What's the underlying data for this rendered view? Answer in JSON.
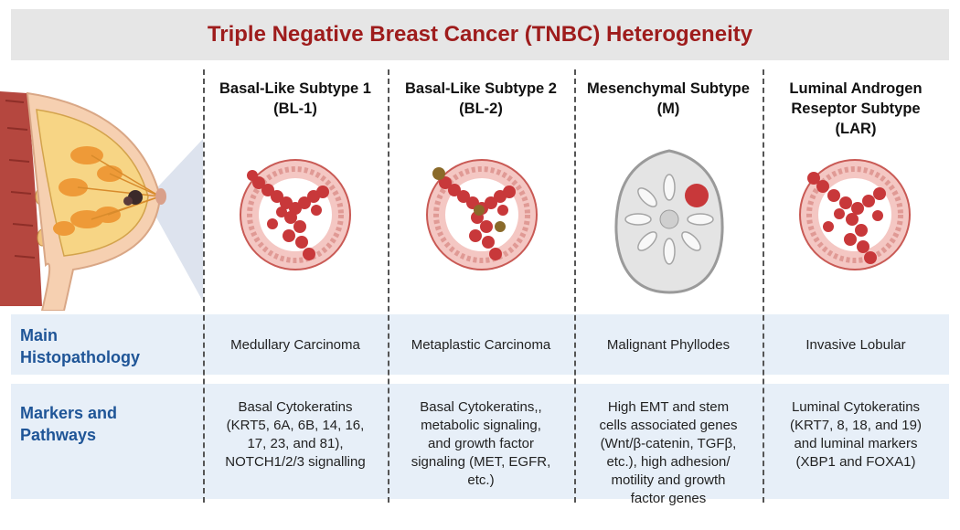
{
  "title": "Triple Negative Breast Cancer (TNBC) Heterogeneity",
  "subtypes": [
    {
      "name": "Basal-Like Subtype 1",
      "abbr": "(BL-1)"
    },
    {
      "name": "Basal-Like Subtype 2",
      "abbr": "(BL-2)"
    },
    {
      "name": "Mesenchymal Subtype",
      "abbr": "(M)"
    },
    {
      "name": "Luminal Androgen",
      "name2": "Reseptor Subtype",
      "abbr": "(LAR)"
    }
  ],
  "rows": {
    "histopathology": {
      "label_line1": "Main",
      "label_line2": "Histopathology",
      "values": [
        "Medullary Carcinoma",
        "Metaplastic Carcinoma",
        "Malignant Phyllodes",
        "Invasive Lobular"
      ]
    },
    "markers": {
      "label_line1": "Markers and",
      "label_line2": "Pathways",
      "values": [
        [
          "Basal Cytokeratins",
          "(KRT5, 6A, 6B, 14, 16,",
          "17, 23, and 81),",
          "NOTCH1/2/3 signalling"
        ],
        [
          "Basal Cytokeratins,,",
          "metabolic signaling,",
          "and growth factor",
          "signaling (MET, EGFR,",
          "etc.)"
        ],
        [
          "High EMT and stem",
          "cells associated genes",
          "(Wnt/β-catenin, TGFβ,",
          "etc.), high adhesion/",
          "motility and growth",
          "factor genes"
        ],
        [
          "Luminal Cytokeratins",
          "(KRT7, 8, 18, and 19)",
          "and luminal markers",
          "(XBP1 and FOXA1)"
        ]
      ]
    }
  },
  "colors": {
    "title": "#9e1c1c",
    "row_label": "#1f5597",
    "band": "#e7eff8",
    "tumor": "#c8383a"
  }
}
